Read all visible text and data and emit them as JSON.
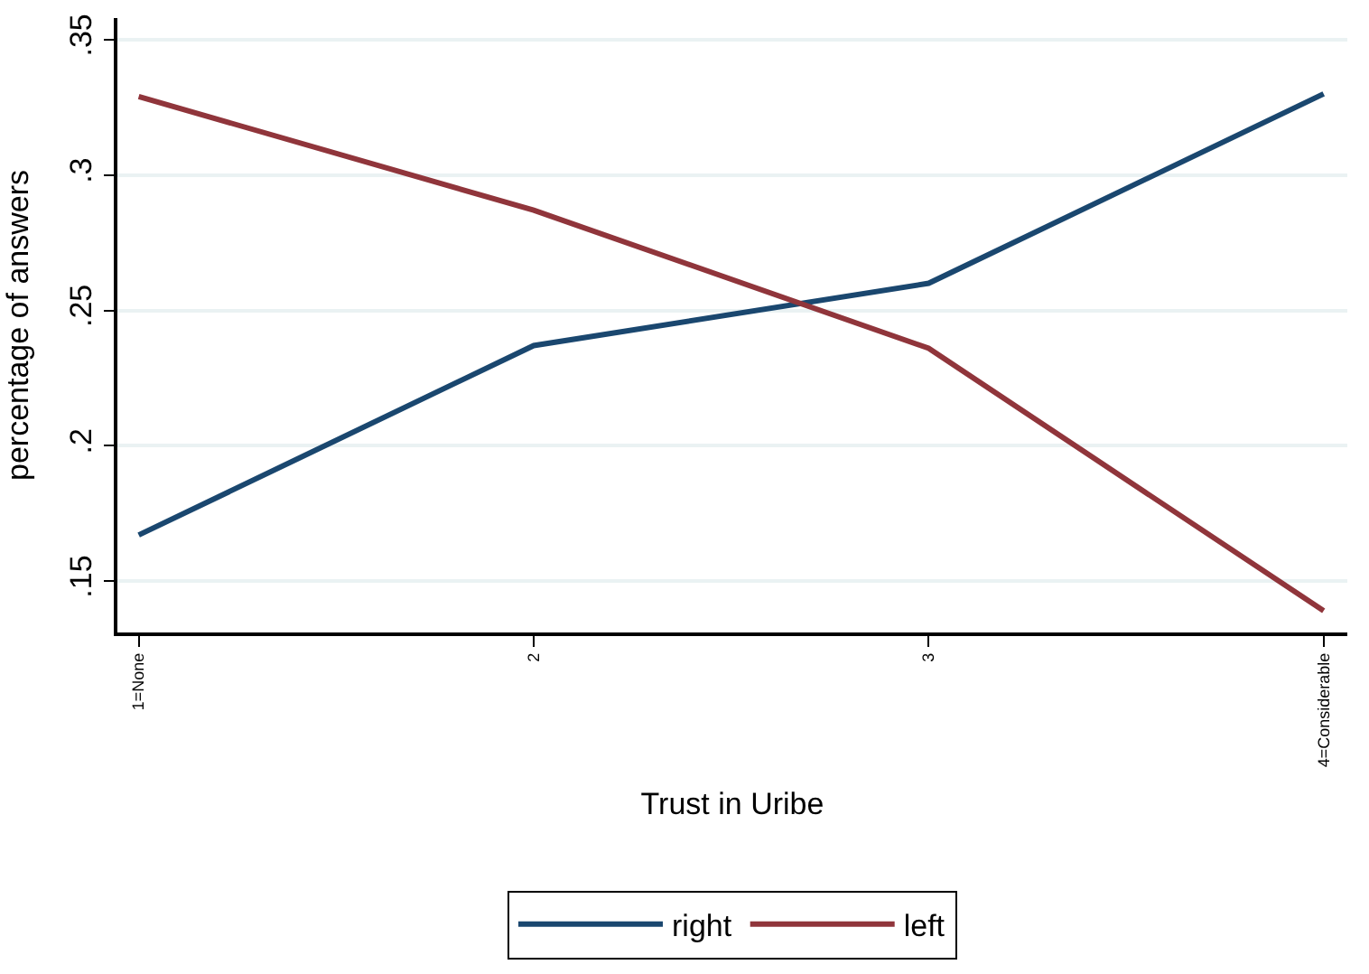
{
  "chart_data": {
    "type": "line",
    "xlabel": "Trust in Uribe",
    "ylabel": "percentage of answers",
    "x": [
      1,
      2,
      3,
      4
    ],
    "xlim": [
      0.946,
      4.06
    ],
    "xticks": [
      {
        "value": 1,
        "label": "1=None"
      },
      {
        "value": 2,
        "label": "2"
      },
      {
        "value": 3,
        "label": "3"
      },
      {
        "value": 4,
        "label": "4=Considerable"
      }
    ],
    "ylim": [
      0.131,
      0.358
    ],
    "yticks": [
      {
        "value": 0.15,
        "label": ".15"
      },
      {
        "value": 0.2,
        "label": ".2"
      },
      {
        "value": 0.25,
        "label": ".25"
      },
      {
        "value": 0.3,
        "label": ".3"
      },
      {
        "value": 0.35,
        "label": ".35"
      }
    ],
    "series": [
      {
        "name": "right",
        "color": "#1a476f",
        "values": [
          0.167,
          0.237,
          0.26,
          0.33
        ]
      },
      {
        "name": "left",
        "color": "#90353b",
        "values": [
          0.329,
          0.287,
          0.236,
          0.139
        ]
      }
    ],
    "grid": "y",
    "legend": "bottom",
    "marker": "none",
    "line_style": "solid"
  }
}
